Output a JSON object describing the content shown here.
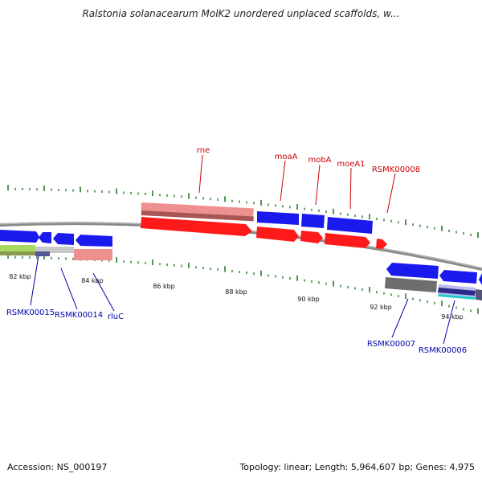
{
  "title": "Ralstonia solanacearum MolK2 unordered unplaced scaffolds, w...",
  "footer": {
    "accession": "Accession: NS_000197",
    "stats": "Topology: linear; Length: 5,964,607 bp; Genes: 4,975"
  },
  "colors": {
    "forward_gene": "#ff1a1a",
    "reverse_gene": "#1a1aee",
    "pink_gene": "#ee8888",
    "grey_gene": "#777777",
    "scaffold": "#888888",
    "tick": "#2a7a2a",
    "forward_label": "#cc0000",
    "reverse_label": "#0000aa"
  },
  "scale_labels": [
    "82 kbp",
    "84 kbp",
    "86 kbp",
    "88 kbp",
    "90 kbp",
    "92 kbp",
    "94 kbp"
  ],
  "upper_genes": [
    {
      "label": "rne",
      "strand": "forward"
    },
    {
      "label": "moaA",
      "strand": "forward"
    },
    {
      "label": "mobA",
      "strand": "forward"
    },
    {
      "label": "moeA1",
      "strand": "forward"
    },
    {
      "label": "RSMK00008",
      "strand": "forward"
    }
  ],
  "lower_genes": [
    {
      "label": "RSMK00015",
      "strand": "reverse"
    },
    {
      "label": "RSMK00014",
      "strand": "reverse"
    },
    {
      "label": "rluC",
      "strand": "reverse"
    },
    {
      "label": "RSMK00007",
      "strand": "reverse"
    },
    {
      "label": "RSMK00006",
      "strand": "reverse"
    }
  ]
}
